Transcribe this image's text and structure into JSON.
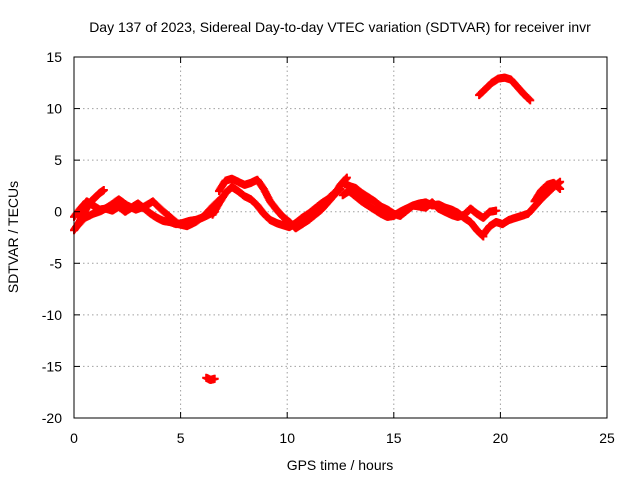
{
  "chart_data": {
    "type": "scatter",
    "title": "Day 137 of 2023, Sidereal Day-to-day VTEC variation (SDTVAR) for receiver invr",
    "xlabel": "GPS time / hours",
    "ylabel": "SDTVAR / TECUs",
    "xlim": [
      0,
      25
    ],
    "ylim": [
      -20,
      15
    ],
    "xticks": [
      "0",
      "5",
      "10",
      "15",
      "20",
      "25"
    ],
    "yticks": [
      "15",
      "10",
      "5",
      "0",
      "-5",
      "-10",
      "-15",
      "-20"
    ],
    "grid": true,
    "marker": "plus",
    "color": "#ff0000",
    "series": [
      {
        "name": "trace-main-a",
        "x": [
          0.0,
          0.3,
          0.6,
          0.9,
          1.2,
          1.5,
          1.8,
          2.1,
          2.4,
          2.7,
          3.0,
          3.3,
          3.6,
          3.9,
          4.2,
          4.5,
          4.8,
          5.1,
          5.4,
          5.7,
          6.0,
          6.3,
          6.6
        ],
        "y": [
          -0.5,
          0.3,
          1.0,
          0.6,
          0.2,
          0.3,
          0.1,
          0.5,
          0.0,
          0.4,
          0.8,
          0.3,
          -0.2,
          -0.6,
          -0.9,
          -1.0,
          -1.2,
          -1.1,
          -0.9,
          -0.8,
          -0.6,
          -0.3,
          0.0
        ]
      },
      {
        "name": "trace-main-b",
        "x": [
          0.0,
          0.2,
          0.4,
          0.6,
          0.8,
          1.0,
          1.2,
          1.4
        ],
        "y": [
          -1.8,
          -1.2,
          -0.4,
          0.4,
          1.0,
          1.4,
          1.8,
          2.1
        ]
      },
      {
        "name": "trace-main-c",
        "x": [
          0.1,
          0.5,
          0.9,
          1.3,
          1.7,
          2.1,
          2.5,
          2.9,
          3.3,
          3.7,
          4.1,
          4.5,
          4.9,
          5.3,
          5.7,
          6.1,
          6.5,
          6.9
        ],
        "y": [
          -1.5,
          -0.6,
          -0.2,
          0.1,
          0.6,
          1.2,
          0.6,
          0.2,
          0.5,
          1.0,
          0.2,
          -0.5,
          -1.2,
          -1.4,
          -1.0,
          -0.4,
          0.5,
          1.3
        ]
      },
      {
        "name": "trace-main-d",
        "x": [
          6.5,
          6.8,
          7.1,
          7.4,
          7.7,
          8.0,
          8.3,
          8.6,
          8.9,
          9.2,
          9.5,
          9.8,
          10.1,
          10.4,
          10.7,
          11.0,
          11.3,
          11.6,
          11.9,
          12.2,
          12.5
        ],
        "y": [
          -0.3,
          0.8,
          1.8,
          2.4,
          2.0,
          1.5,
          1.2,
          0.6,
          -0.2,
          -0.8,
          -1.1,
          -1.3,
          -1.5,
          -1.1,
          -0.6,
          -0.2,
          0.3,
          0.8,
          1.2,
          1.8,
          2.2
        ]
      },
      {
        "name": "trace-main-e",
        "x": [
          6.8,
          7.1,
          7.4,
          7.7,
          8.0,
          8.3,
          8.6,
          8.9,
          9.2,
          9.5,
          9.8,
          10.1,
          10.4,
          10.7,
          11.0,
          11.3,
          11.6,
          11.9,
          12.2,
          12.5,
          12.8
        ],
        "y": [
          2.0,
          3.0,
          3.2,
          2.9,
          2.6,
          2.8,
          3.1,
          2.2,
          1.0,
          0.2,
          -0.5,
          -1.0,
          -1.6,
          -1.2,
          -0.8,
          -0.3,
          0.2,
          0.9,
          1.6,
          2.6,
          3.3
        ]
      },
      {
        "name": "trace-main-f",
        "x": [
          12.6,
          12.9,
          13.2,
          13.5,
          13.8,
          14.1,
          14.4,
          14.7,
          15.0,
          15.3,
          15.6,
          15.9,
          16.2,
          16.5,
          16.8,
          17.1,
          17.4,
          17.7,
          18.0,
          18.3,
          18.6,
          18.9,
          19.2
        ],
        "y": [
          2.8,
          2.5,
          2.3,
          1.8,
          1.4,
          1.0,
          0.5,
          0.2,
          -0.2,
          -0.4,
          0.1,
          0.6,
          0.8,
          0.9,
          0.6,
          0.7,
          0.4,
          0.2,
          -0.1,
          -0.6,
          -1.0,
          -1.8,
          -2.4
        ]
      },
      {
        "name": "trace-main-g",
        "x": [
          12.6,
          12.9,
          13.2,
          13.5,
          13.8,
          14.1,
          14.4,
          14.7,
          15.0,
          15.3,
          15.6,
          15.9,
          16.2,
          16.5,
          16.8,
          17.1,
          17.4,
          17.7,
          18.0,
          18.3,
          18.6,
          18.9,
          19.2,
          19.5,
          19.8
        ],
        "y": [
          1.6,
          2.0,
          1.5,
          1.0,
          0.6,
          0.2,
          -0.2,
          -0.5,
          -0.4,
          0.0,
          0.3,
          0.6,
          0.5,
          0.4,
          0.9,
          0.3,
          0.0,
          -0.3,
          -0.5,
          -0.3,
          0.3,
          -0.2,
          -0.6,
          0.0,
          0.1
        ]
      },
      {
        "name": "trace-main-h",
        "x": [
          19.2,
          19.5,
          19.8,
          20.1,
          20.4,
          20.7,
          21.0,
          21.3,
          21.6,
          21.9,
          22.2,
          22.5,
          22.8
        ],
        "y": [
          -2.2,
          -1.4,
          -1.0,
          -1.2,
          -0.8,
          -0.6,
          -0.4,
          -0.2,
          0.5,
          1.2,
          1.8,
          2.4,
          2.9
        ]
      },
      {
        "name": "trace-main-i",
        "x": [
          21.6,
          21.9,
          22.2,
          22.5,
          22.8
        ],
        "y": [
          1.0,
          2.0,
          2.6,
          2.8,
          2.2
        ]
      },
      {
        "name": "trace-high",
        "x": [
          19.0,
          19.3,
          19.6,
          19.9,
          20.2,
          20.5,
          20.8,
          21.1,
          21.4
        ],
        "y": [
          11.3,
          11.9,
          12.5,
          12.9,
          13.0,
          12.8,
          12.1,
          11.4,
          10.8
        ]
      },
      {
        "name": "trace-low",
        "x": [
          6.2,
          6.4,
          6.6
        ],
        "y": [
          -16.1,
          -16.3,
          -16.2
        ]
      }
    ]
  }
}
